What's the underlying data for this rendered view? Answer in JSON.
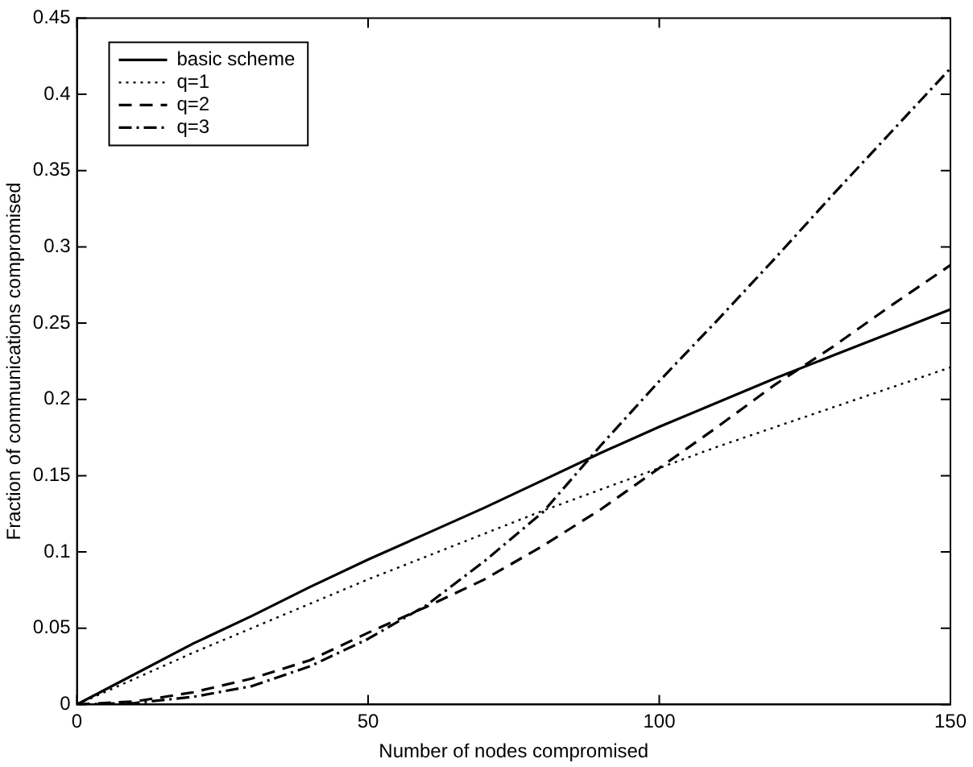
{
  "chart_data": {
    "type": "line",
    "xlabel": "Number of nodes compromised",
    "ylabel": "Fraction of communications compromised",
    "x": [
      0,
      10,
      20,
      30,
      40,
      50,
      60,
      70,
      80,
      90,
      100,
      110,
      120,
      130,
      140,
      150
    ],
    "series": [
      {
        "name": "basic scheme",
        "color": "#000000",
        "line_style": "solid",
        "values": [
          0,
          0.02,
          0.04,
          0.058,
          0.077,
          0.095,
          0.112,
          0.129,
          0.147,
          0.165,
          0.182,
          0.198,
          0.214,
          0.229,
          0.244,
          0.259
        ]
      },
      {
        "name": "q=1",
        "color": "#000000",
        "line_style": "dotted",
        "values": [
          0,
          0.017,
          0.034,
          0.05,
          0.066,
          0.082,
          0.097,
          0.112,
          0.127,
          0.141,
          0.155,
          0.169,
          0.182,
          0.195,
          0.208,
          0.221
        ]
      },
      {
        "name": "q=2",
        "color": "#000000",
        "line_style": "dashed",
        "values": [
          0,
          0.002,
          0.008,
          0.017,
          0.029,
          0.047,
          0.064,
          0.082,
          0.104,
          0.128,
          0.155,
          0.182,
          0.21,
          0.235,
          0.262,
          0.288
        ]
      },
      {
        "name": "q=3",
        "color": "#000000",
        "line_style": "dashdot",
        "values": [
          0,
          0.001,
          0.005,
          0.012,
          0.025,
          0.043,
          0.065,
          0.094,
          0.126,
          0.17,
          0.212,
          0.252,
          0.293,
          0.335,
          0.376,
          0.417
        ]
      }
    ],
    "xlim": [
      0,
      150
    ],
    "xticks": [
      0,
      50,
      100,
      150
    ],
    "ylim": [
      0,
      0.45
    ],
    "yticks": [
      0,
      0.05,
      0.1,
      0.15,
      0.2,
      0.25,
      0.3,
      0.35,
      0.4,
      0.45
    ],
    "legend": "top left",
    "grid": false,
    "marker": "none"
  }
}
